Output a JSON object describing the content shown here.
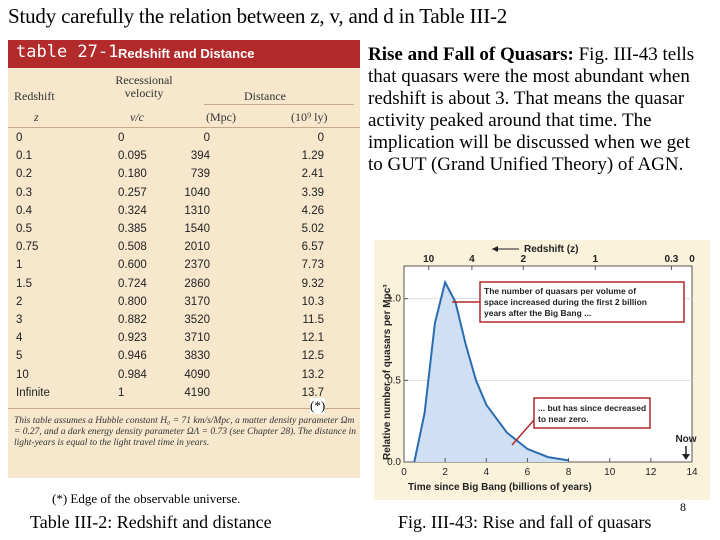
{
  "heading": "Study carefully the relation between z, v, and d in Table III-2",
  "table": {
    "number": "table 27-1",
    "title": "Redshift and Distance",
    "headers": {
      "redshift": "Redshift",
      "velocity": "Recessional velocity",
      "distance": "Distance",
      "z": "z",
      "vc": "v/c",
      "mpc": "(Mpc)",
      "ly": "(10⁹ ly)"
    },
    "rows": [
      [
        "0",
        "0",
        "0",
        "0"
      ],
      [
        "0.1",
        "0.095",
        "394",
        "1.29"
      ],
      [
        "0.2",
        "0.180",
        "739",
        "2.41"
      ],
      [
        "0.3",
        "0.257",
        "1040",
        "3.39"
      ],
      [
        "0.4",
        "0.324",
        "1310",
        "4.26"
      ],
      [
        "0.5",
        "0.385",
        "1540",
        "5.02"
      ],
      [
        "0.75",
        "0.508",
        "2010",
        "6.57"
      ],
      [
        "1",
        "0.600",
        "2370",
        "7.73"
      ],
      [
        "1.5",
        "0.724",
        "2860",
        "9.32"
      ],
      [
        "2",
        "0.800",
        "3170",
        "10.3"
      ],
      [
        "3",
        "0.882",
        "3520",
        "11.5"
      ],
      [
        "4",
        "0.923",
        "3710",
        "12.1"
      ],
      [
        "5",
        "0.946",
        "3830",
        "12.5"
      ],
      [
        "10",
        "0.984",
        "4090",
        "13.2"
      ],
      [
        "Infinite",
        "1",
        "4190",
        "13.7"
      ]
    ],
    "note": "This table assumes a Hubble constant H₀ = 71 km/s/Mpc, a matter density parameter Ωm = 0.27, and a dark energy density parameter ΩΛ = 0.73 (see Chapter 28). The distance in light-years is equal to the light travel time in years."
  },
  "star_mark": "(*)",
  "right_text": {
    "bold": "Rise and Fall of Quasars:",
    "body": " Fig. III-43 tells that quasars were the most abundant when redshift is about 3. That means the quasar activity peaked around that time. The implication will be discussed when we get to GUT (Grand Unified Theory) of AGN."
  },
  "figure": {
    "top_axis_title": "Redshift (z)",
    "top_ticks": [
      "10",
      "4",
      "2",
      "1",
      "0.3",
      "0"
    ],
    "y_label": "Relative number of quasars per Mpc³",
    "y_ticks": [
      "1.0",
      "0.5",
      "0.0"
    ],
    "x_ticks": [
      "0",
      "2",
      "4",
      "6",
      "8",
      "10",
      "12",
      "14"
    ],
    "x_label": "Time since Big Bang (billions of years)",
    "annotation_1": "The number of quasars per volume of space increased during the first 2 billion years after the Big Bang ...",
    "annotation_2": "... but has since decreased to near zero.",
    "now_label": "Now",
    "colors": {
      "curve": "#2b6cb0",
      "annotation": "#b22a2a",
      "fill": "#cfe0f4"
    }
  },
  "chart_data": {
    "type": "area",
    "title": "",
    "xlabel": "Time since Big Bang (billions of years)",
    "ylabel": "Relative number of quasars per Mpc³",
    "xlim": [
      0,
      14
    ],
    "ylim": [
      0,
      1.2
    ],
    "x": [
      0.5,
      1.0,
      1.5,
      2.0,
      2.5,
      3.0,
      3.5,
      4.0,
      5.0,
      6.0,
      7.0,
      8.0
    ],
    "series": [
      {
        "values": [
          0.0,
          0.3,
          0.85,
          1.1,
          0.98,
          0.72,
          0.5,
          0.35,
          0.18,
          0.08,
          0.03,
          0.01
        ]
      }
    ]
  },
  "footnote": "(*) Edge of the observable universe.",
  "caption_left": "Table III-2: Redshift and distance",
  "caption_right": "Fig. III-43: Rise and fall of quasars",
  "page_mark": "8"
}
